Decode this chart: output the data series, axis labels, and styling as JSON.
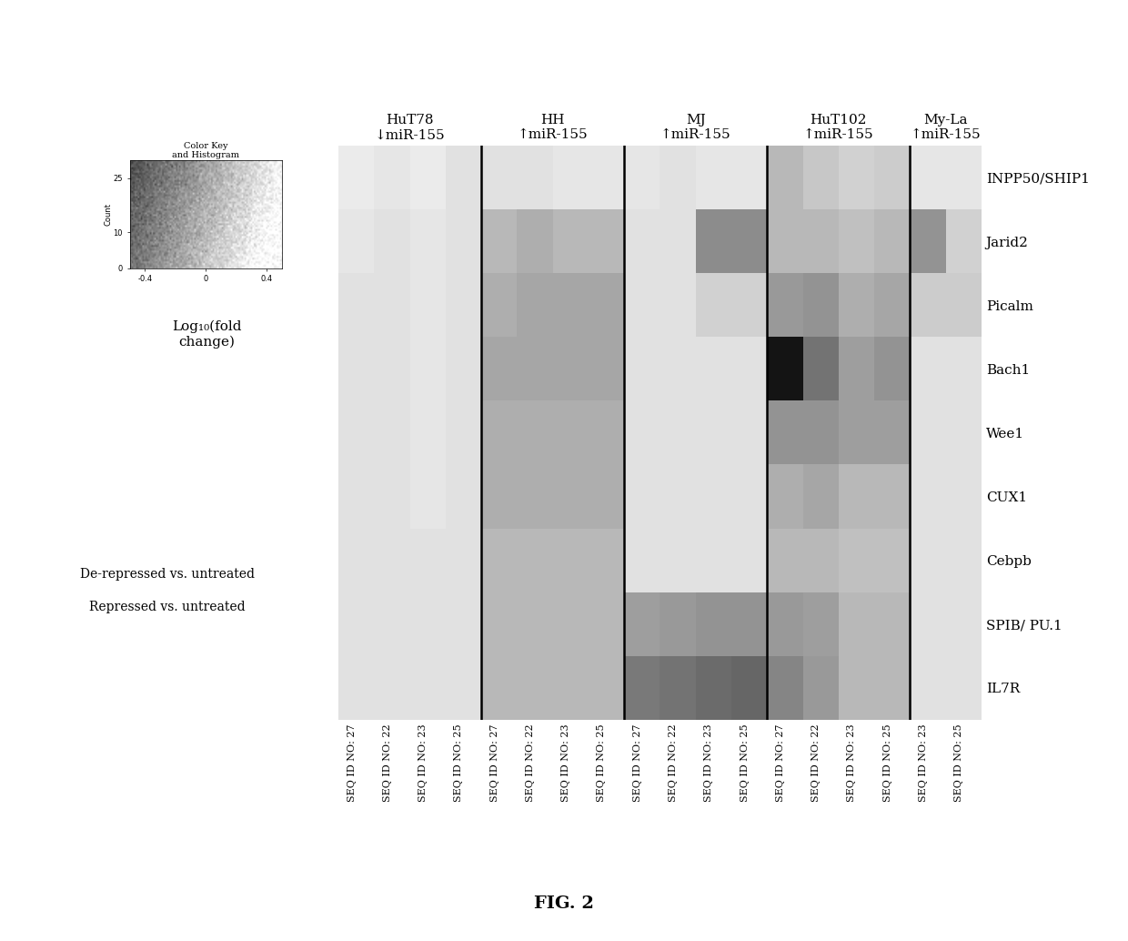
{
  "genes": [
    "INPP50/SHIP1",
    "Jarid2",
    "Picalm",
    "Bach1",
    "Wee1",
    "CUX1",
    "Cebpb",
    "SPIB/ PU.1",
    "IL7R"
  ],
  "col_labels": [
    "27",
    "22",
    "23",
    "25",
    "27",
    "22",
    "23",
    "25",
    "27",
    "22",
    "23",
    "25",
    "27",
    "22",
    "23",
    "25",
    "23",
    "25"
  ],
  "group_labels": [
    "HuT78\n↓miR-155",
    "HH\n↑miR-155",
    "MJ\n↑miR-155",
    "HuT102\n↑miR-155",
    "My-La\n↑miR-155"
  ],
  "group_sizes": [
    4,
    4,
    4,
    4,
    2
  ],
  "dividers_after": [
    3,
    7,
    11,
    15
  ],
  "heatmap": [
    [
      0.92,
      0.9,
      0.92,
      0.88,
      0.88,
      0.88,
      0.9,
      0.9,
      0.9,
      0.88,
      0.9,
      0.9,
      0.72,
      0.78,
      0.82,
      0.8,
      0.9,
      0.9
    ],
    [
      0.9,
      0.88,
      0.9,
      0.88,
      0.72,
      0.68,
      0.72,
      0.72,
      0.88,
      0.88,
      0.55,
      0.55,
      0.72,
      0.72,
      0.75,
      0.72,
      0.58,
      0.82
    ],
    [
      0.88,
      0.88,
      0.9,
      0.88,
      0.68,
      0.65,
      0.65,
      0.65,
      0.88,
      0.88,
      0.82,
      0.82,
      0.6,
      0.58,
      0.68,
      0.65,
      0.8,
      0.8
    ],
    [
      0.88,
      0.88,
      0.9,
      0.88,
      0.65,
      0.65,
      0.65,
      0.65,
      0.88,
      0.88,
      0.88,
      0.88,
      0.08,
      0.45,
      0.62,
      0.58,
      0.88,
      0.88
    ],
    [
      0.88,
      0.88,
      0.9,
      0.88,
      0.68,
      0.68,
      0.68,
      0.68,
      0.88,
      0.88,
      0.88,
      0.88,
      0.58,
      0.58,
      0.62,
      0.62,
      0.88,
      0.88
    ],
    [
      0.88,
      0.88,
      0.9,
      0.88,
      0.68,
      0.68,
      0.68,
      0.68,
      0.88,
      0.88,
      0.88,
      0.88,
      0.68,
      0.65,
      0.72,
      0.72,
      0.88,
      0.88
    ],
    [
      0.88,
      0.88,
      0.88,
      0.88,
      0.72,
      0.72,
      0.72,
      0.72,
      0.88,
      0.88,
      0.88,
      0.88,
      0.72,
      0.72,
      0.75,
      0.75,
      0.88,
      0.88
    ],
    [
      0.88,
      0.88,
      0.88,
      0.88,
      0.72,
      0.72,
      0.72,
      0.72,
      0.62,
      0.6,
      0.58,
      0.58,
      0.6,
      0.62,
      0.72,
      0.72,
      0.88,
      0.88
    ],
    [
      0.88,
      0.88,
      0.88,
      0.88,
      0.72,
      0.72,
      0.72,
      0.72,
      0.48,
      0.45,
      0.42,
      0.4,
      0.52,
      0.6,
      0.72,
      0.72,
      0.88,
      0.88
    ]
  ],
  "fig_width": 12.4,
  "fig_height": 10.34,
  "colorkey_title": "Color Key\nand Histogram",
  "colorkey_xlabel_vals": [
    "-0.4",
    "0",
    "0.4"
  ],
  "colorkey_yticks": [
    0,
    10,
    25
  ],
  "colorkey_ylabel": "Count",
  "colorkey_label": "Log₁₀(fold\nchange)",
  "legend_line1": "De-repressed vs. untreated",
  "legend_line2": "Repressed vs. untreated",
  "fig_caption": "FIG. 2"
}
